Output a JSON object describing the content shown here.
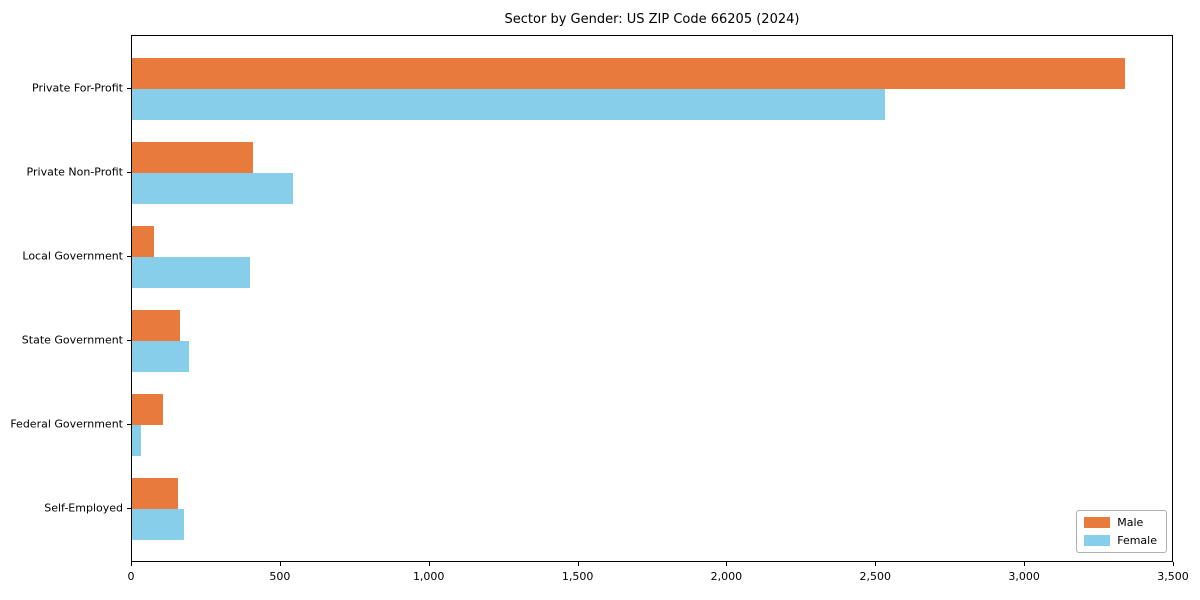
{
  "chart_data": {
    "type": "bar",
    "orientation": "horizontal",
    "title": "Sector by Gender: US ZIP Code 66205 (2024)",
    "categories": [
      "Private For-Profit",
      "Private Non-Profit",
      "Local Government",
      "State Government",
      "Federal Government",
      "Self-Employed"
    ],
    "series": [
      {
        "name": "Male",
        "color": "#e87b3c",
        "values": [
          3335,
          405,
          75,
          160,
          105,
          155
        ]
      },
      {
        "name": "Female",
        "color": "#87ceeb",
        "values": [
          2530,
          540,
          395,
          190,
          30,
          175
        ]
      }
    ],
    "xlabel": "",
    "ylabel": "",
    "xlim": [
      0,
      3500
    ],
    "xticks": [
      0,
      500,
      1000,
      1500,
      2000,
      2500,
      3000,
      3500
    ],
    "xtick_labels": [
      "0",
      "500",
      "1,000",
      "1,500",
      "2,000",
      "2,500",
      "3,000",
      "3,500"
    ],
    "grid": false,
    "legend": {
      "position": "lower right"
    },
    "colors": {
      "axis": "#000000",
      "plot_background": "#ffffff",
      "legend_border": "#b0b0b0"
    }
  }
}
